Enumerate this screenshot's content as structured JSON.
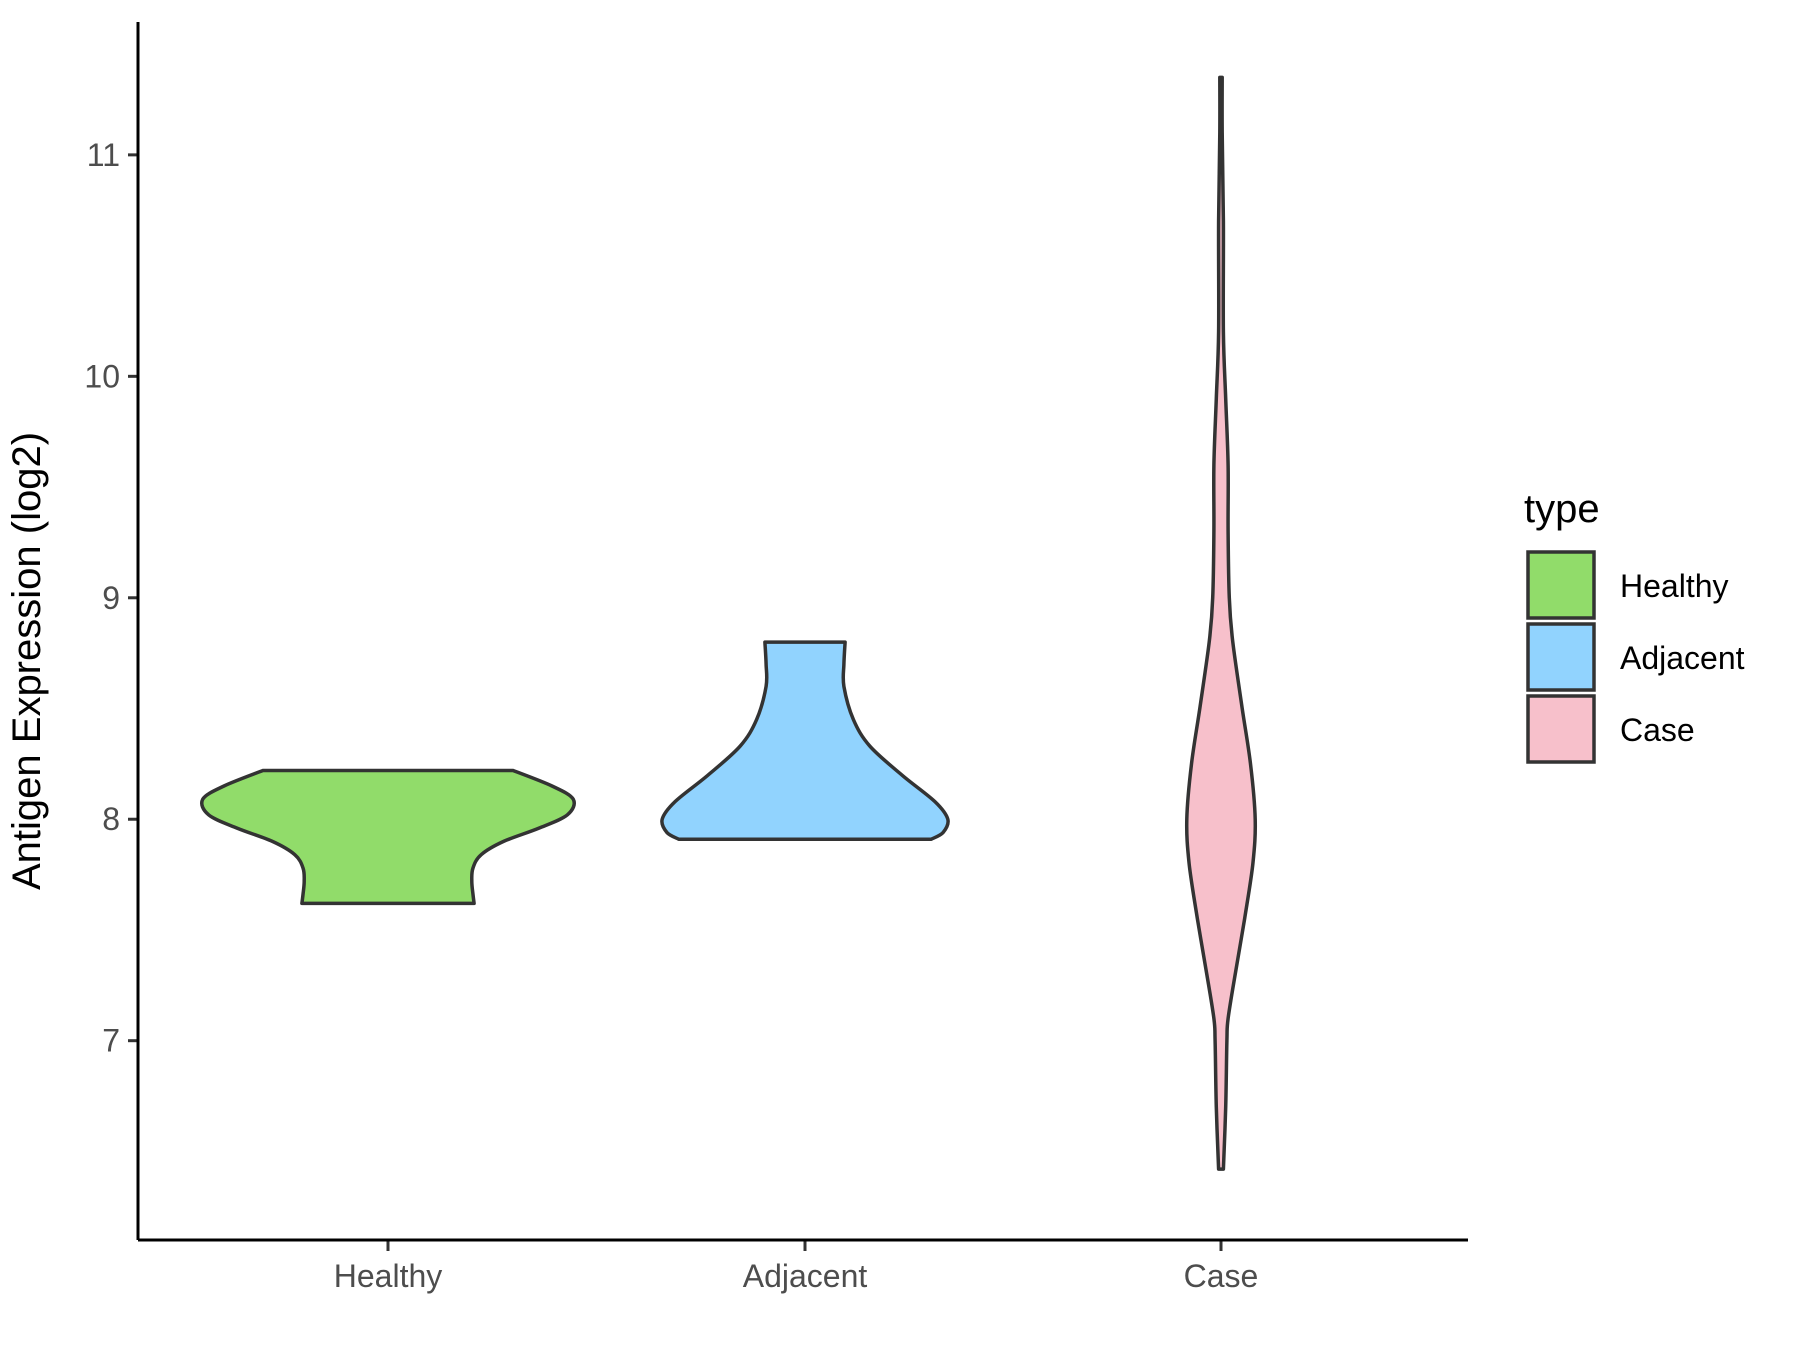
{
  "chart_data": {
    "type": "violin",
    "title": "",
    "xlabel": "",
    "ylabel": "Antigen Expression (log2)",
    "categories": [
      "Healthy",
      "Adjacent",
      "Case"
    ],
    "ylim": [
      6.1,
      11.6
    ],
    "yticks": [
      7,
      8,
      9,
      10,
      11
    ],
    "grid": false,
    "legend": {
      "title": "type",
      "position": "right",
      "entries": [
        "Healthy",
        "Adjacent",
        "Case"
      ]
    },
    "colors": {
      "Healthy": "#91dc6a",
      "Adjacent": "#91d3fe",
      "Case": "#f7c0cb",
      "outline": "#333333"
    },
    "series": [
      {
        "category": "Healthy",
        "min": 7.62,
        "max": 8.22,
        "density": [
          [
            7.62,
            0.73
          ],
          [
            7.66,
            0.72
          ],
          [
            7.72,
            0.71
          ],
          [
            7.78,
            0.72
          ],
          [
            7.84,
            0.79
          ],
          [
            7.9,
            0.98
          ],
          [
            7.96,
            1.28
          ],
          [
            8.02,
            1.52
          ],
          [
            8.09,
            1.57
          ],
          [
            8.15,
            1.39
          ],
          [
            8.22,
            1.06
          ]
        ]
      },
      {
        "category": "Adjacent",
        "min": 7.91,
        "max": 8.8,
        "density": [
          [
            7.91,
            1.07
          ],
          [
            7.94,
            1.17
          ],
          [
            8.0,
            1.21
          ],
          [
            8.08,
            1.1
          ],
          [
            8.2,
            0.82
          ],
          [
            8.33,
            0.55
          ],
          [
            8.45,
            0.41
          ],
          [
            8.6,
            0.33
          ],
          [
            8.7,
            0.33
          ],
          [
            8.8,
            0.34
          ]
        ]
      },
      {
        "category": "Case",
        "min": 6.42,
        "max": 11.35,
        "density": [
          [
            6.42,
            0.02
          ],
          [
            6.7,
            0.04
          ],
          [
            7.0,
            0.05
          ],
          [
            7.1,
            0.06
          ],
          [
            7.3,
            0.12
          ],
          [
            7.55,
            0.2
          ],
          [
            7.8,
            0.27
          ],
          [
            8.0,
            0.29
          ],
          [
            8.25,
            0.25
          ],
          [
            8.5,
            0.18
          ],
          [
            8.8,
            0.1
          ],
          [
            9.0,
            0.07
          ],
          [
            9.3,
            0.06
          ],
          [
            9.6,
            0.06
          ],
          [
            9.9,
            0.04
          ],
          [
            10.2,
            0.02
          ],
          [
            10.7,
            0.02
          ],
          [
            11.1,
            0.01
          ],
          [
            11.35,
            0.01
          ]
        ]
      }
    ]
  }
}
